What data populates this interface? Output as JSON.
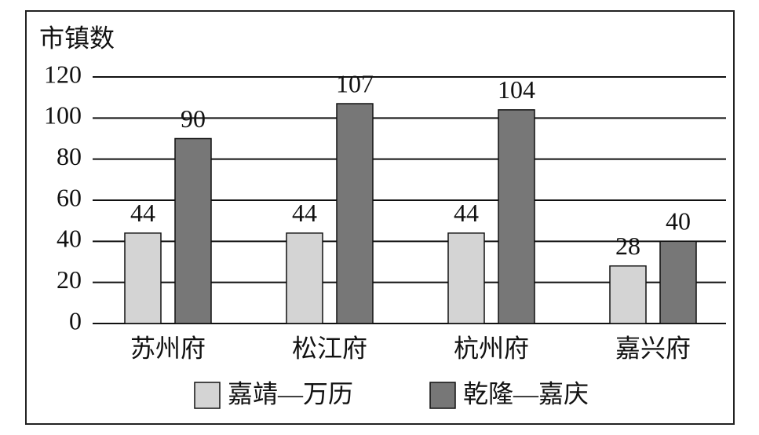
{
  "chart_data": {
    "type": "bar",
    "y_label": "市镇数",
    "categories": [
      "苏州府",
      "松江府",
      "杭州府",
      "嘉兴府"
    ],
    "series": [
      {
        "name": "嘉靖—万历",
        "color": "#d4d4d4",
        "values": [
          44,
          44,
          44,
          28
        ]
      },
      {
        "name": "乾隆—嘉庆",
        "color": "#777777",
        "values": [
          90,
          107,
          104,
          40
        ]
      }
    ],
    "ylim": [
      0,
      120
    ],
    "yticks": [
      0,
      20,
      40,
      60,
      80,
      100,
      120
    ],
    "grid": true,
    "legend": "bottom"
  }
}
